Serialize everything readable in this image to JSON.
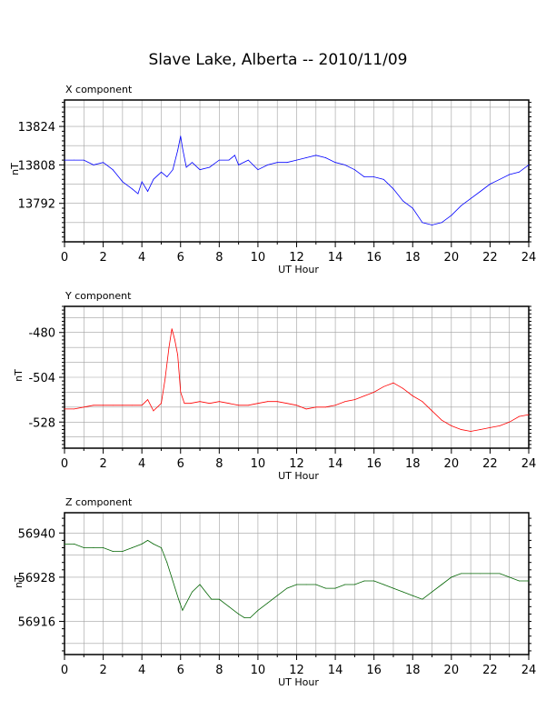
{
  "title": "Slave Lake, Alberta -- 2010/11/09",
  "chart_data": [
    {
      "type": "line",
      "title": "X component",
      "xlabel": "UT Hour",
      "ylabel": "nT",
      "xlim": [
        0,
        24
      ],
      "ylim": [
        13776,
        13835
      ],
      "xticks": [
        0,
        2,
        4,
        6,
        8,
        10,
        12,
        14,
        16,
        18,
        20,
        22,
        24
      ],
      "yticks": [
        13792,
        13808,
        13824
      ],
      "grid": true,
      "color": "#0000ff",
      "series": [
        {
          "x": [
            0,
            0.5,
            1,
            1.5,
            2,
            2.5,
            3,
            3.5,
            3.8,
            4.0,
            4.3,
            4.6,
            5.0,
            5.3,
            5.6,
            5.85,
            6.0,
            6.1,
            6.3,
            6.6,
            7,
            7.5,
            8,
            8.5,
            8.8,
            9,
            9.5,
            10,
            10.5,
            11,
            11.5,
            12,
            12.5,
            13,
            13.5,
            14,
            14.5,
            15,
            15.5,
            16,
            16.5,
            17,
            17.5,
            18,
            18.5,
            19,
            19.5,
            20,
            20.5,
            21,
            21.5,
            22,
            22.5,
            23,
            23.5,
            24
          ],
          "y": [
            13810,
            13810,
            13810,
            13808,
            13809,
            13806,
            13801,
            13798,
            13796,
            13801,
            13797,
            13802,
            13805,
            13803,
            13806,
            13814,
            13820,
            13815,
            13807,
            13809,
            13806,
            13807,
            13810,
            13810,
            13812,
            13808,
            13810,
            13806,
            13808,
            13809,
            13809,
            13810,
            13811,
            13812,
            13811,
            13809,
            13808,
            13806,
            13803,
            13803,
            13802,
            13798,
            13793,
            13790,
            13784,
            13783,
            13784,
            13787,
            13791,
            13794,
            13797,
            13800,
            13802,
            13804,
            13805,
            13808
          ]
        }
      ]
    },
    {
      "type": "line",
      "title": "Y component",
      "xlabel": "UT Hour",
      "ylabel": "nT",
      "xlim": [
        0,
        24
      ],
      "ylim": [
        -542,
        -466
      ],
      "xticks": [
        0,
        2,
        4,
        6,
        8,
        10,
        12,
        14,
        16,
        18,
        20,
        22,
        24
      ],
      "yticks": [
        -480,
        -504,
        -528
      ],
      "grid": true,
      "color": "#ff0000",
      "series": [
        {
          "x": [
            0,
            0.5,
            1,
            1.5,
            2,
            2.5,
            3,
            3.5,
            4,
            4.3,
            4.6,
            5.0,
            5.2,
            5.4,
            5.55,
            5.7,
            5.85,
            6.0,
            6.2,
            6.5,
            7,
            7.5,
            8,
            8.5,
            9,
            9.5,
            10,
            10.5,
            11,
            11.5,
            12,
            12.5,
            13,
            13.5,
            14,
            14.5,
            15,
            15.5,
            16,
            16.5,
            17,
            17.5,
            18,
            18.5,
            19,
            19.5,
            20,
            20.5,
            21,
            21.5,
            22,
            22.5,
            23,
            23.5,
            24
          ],
          "y": [
            -521,
            -521,
            -520,
            -519,
            -519,
            -519,
            -519,
            -519,
            -519,
            -516,
            -522,
            -518,
            -505,
            -488,
            -478,
            -484,
            -492,
            -512,
            -518,
            -518,
            -517,
            -518,
            -517,
            -518,
            -519,
            -519,
            -518,
            -517,
            -517,
            -518,
            -519,
            -521,
            -520,
            -520,
            -519,
            -517,
            -516,
            -514,
            -512,
            -509,
            -507,
            -510,
            -514,
            -517,
            -522,
            -527,
            -530,
            -532,
            -533,
            -532,
            -531,
            -530,
            -528,
            -525,
            -524
          ]
        }
      ]
    },
    {
      "type": "line",
      "title": "Z component",
      "xlabel": "UT Hour",
      "ylabel": "nT",
      "xlim": [
        0,
        24
      ],
      "ylim": [
        56907,
        56945.5
      ],
      "xticks": [
        0,
        2,
        4,
        6,
        8,
        10,
        12,
        14,
        16,
        18,
        20,
        22,
        24
      ],
      "yticks": [
        56916,
        56928,
        56940
      ],
      "grid": true,
      "color": "#006400",
      "series": [
        {
          "x": [
            0,
            0.5,
            1,
            1.5,
            2,
            2.5,
            3,
            3.5,
            4,
            4.3,
            4.6,
            5.0,
            5.3,
            5.6,
            5.9,
            6.1,
            6.3,
            6.6,
            7,
            7.3,
            7.6,
            8,
            8.5,
            9,
            9.3,
            9.6,
            10,
            10.5,
            11,
            11.5,
            12,
            12.5,
            13,
            13.5,
            14,
            14.5,
            15,
            15.5,
            16,
            16.5,
            17,
            17.5,
            18,
            18.5,
            19,
            19.5,
            20,
            20.5,
            21,
            21.5,
            22,
            22.5,
            23,
            23.5,
            24
          ],
          "y": [
            56937,
            56937,
            56936,
            56936,
            56936,
            56935,
            56935,
            56936,
            56937,
            56938,
            56937,
            56936,
            56932,
            56927,
            56922,
            56919,
            56921,
            56924,
            56926,
            56924,
            56922,
            56922,
            56920,
            56918,
            56917,
            56917,
            56919,
            56921,
            56923,
            56925,
            56926,
            56926,
            56926,
            56925,
            56925,
            56926,
            56926,
            56927,
            56927,
            56926,
            56925,
            56924,
            56923,
            56922,
            56924,
            56926,
            56928,
            56929,
            56929,
            56929,
            56929,
            56929,
            56928,
            56927,
            56927
          ]
        }
      ]
    }
  ]
}
